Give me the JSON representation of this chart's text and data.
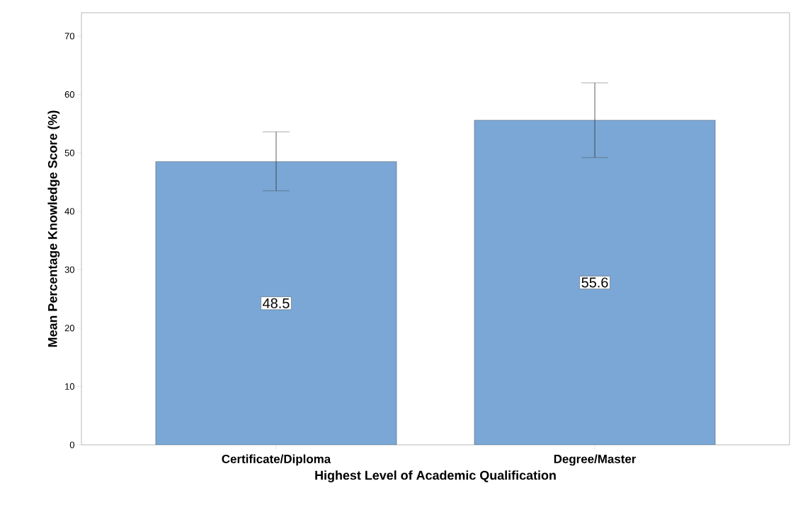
{
  "chart_data": {
    "type": "bar",
    "xlabel": "Highest Level of Academic Qualification",
    "ylabel": "Mean Percentage Knowledge Score (%)",
    "categories": [
      "Certificate/Diploma",
      "Degree/Master"
    ],
    "values": [
      48.5,
      55.6
    ],
    "errors": [
      [
        43.5,
        53.6
      ],
      [
        49.2,
        62.0
      ]
    ],
    "color": "#7aa7d5",
    "data_labels": true,
    "ylim": [
      0,
      74
    ],
    "yticks": [
      0,
      10,
      20,
      30,
      40,
      50,
      60,
      70
    ],
    "grid": false
  }
}
